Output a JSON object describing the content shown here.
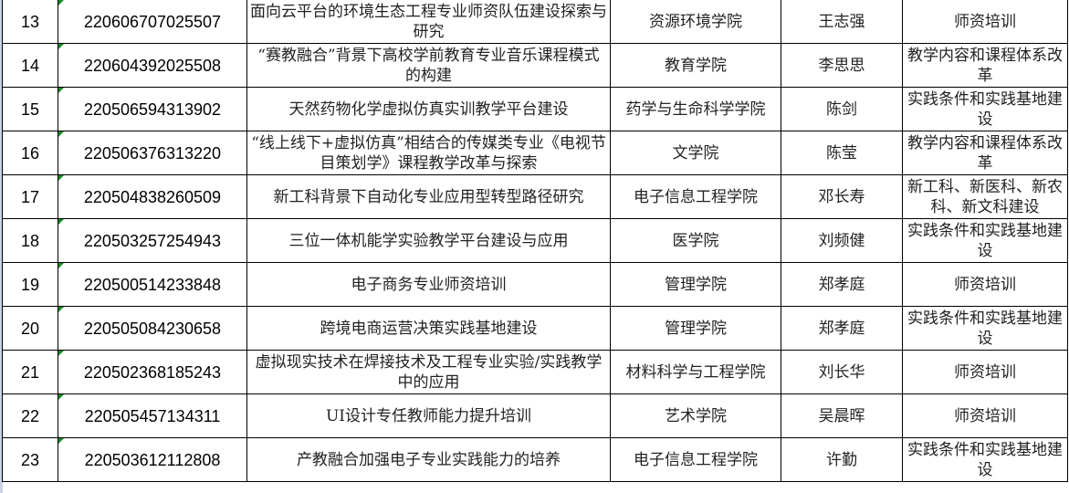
{
  "rows": [
    {
      "no": "13",
      "code": "220606707025507",
      "title": "面向云平台的环境生态工程专业师资队伍建设探索与研究",
      "college": "资源环境学院",
      "leader": "王志强",
      "category": "师资培训"
    },
    {
      "no": "14",
      "code": "220604392025508",
      "title": "“赛教融合”背景下高校学前教育专业音乐课程模式的构建",
      "college": "教育学院",
      "leader": "李思思",
      "category": "教学内容和课程体系改革"
    },
    {
      "no": "15",
      "code": "220506594313902",
      "title": "天然药物化学虚拟仿真实训教学平台建设",
      "college": "药学与生命科学学院",
      "leader": "陈剑",
      "category": "实践条件和实践基地建设"
    },
    {
      "no": "16",
      "code": "220506376313220",
      "title": "“线上线下+虚拟仿真”相结合的传媒类专业《电视节目策划学》课程教学改革与探索",
      "college": "文学院",
      "leader": "陈莹",
      "category": "教学内容和课程体系改革"
    },
    {
      "no": "17",
      "code": "220504838260509",
      "title": "新工科背景下自动化专业应用型转型路径研究",
      "college": "电子信息工程学院",
      "leader": "邓长寿",
      "category": "新工科、新医科、新农科、新文科建设"
    },
    {
      "no": "18",
      "code": "220503257254943",
      "title": "三位一体机能学实验教学平台建设与应用",
      "college": "医学院",
      "leader": "刘频健",
      "category": "实践条件和实践基地建设"
    },
    {
      "no": "19",
      "code": "220500514233848",
      "title": "电子商务专业师资培训",
      "college": "管理学院",
      "leader": "郑孝庭",
      "category": "师资培训"
    },
    {
      "no": "20",
      "code": "220505084230658",
      "title": "跨境电商运营决策实践基地建设",
      "college": "管理学院",
      "leader": "郑孝庭",
      "category": "实践条件和实践基地建设"
    },
    {
      "no": "21",
      "code": "220502368185243",
      "title": "虚拟现实技术在焊接技术及工程专业实验/实践教学中的应用",
      "college": "材料科学与工程学院",
      "leader": "刘长华",
      "category": "师资培训"
    },
    {
      "no": "22",
      "code": "220505457134311",
      "title": "UI设计专任教师能力提升培训",
      "college": "艺术学院",
      "leader": "吴晨晖",
      "category": "师资培训"
    },
    {
      "no": "23",
      "code": "220503612112808",
      "title": "产教融合加强电子专业实践能力的培养",
      "college": "电子信息工程学院",
      "leader": "许勤",
      "category": "实践条件和实践基地建设"
    }
  ]
}
